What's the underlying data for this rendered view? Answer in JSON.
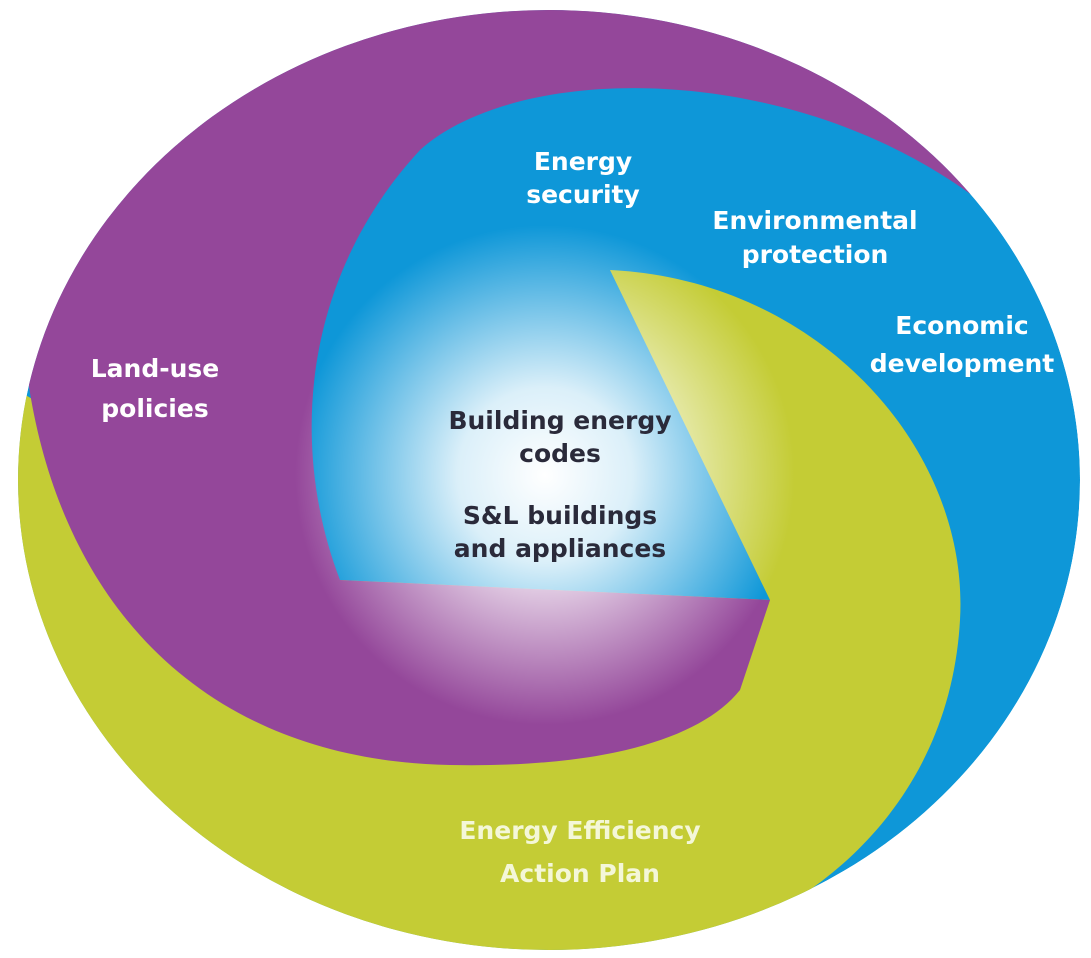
{
  "nodes": [
    {
      "lines": [
        "Energy",
        "security"
      ]
    },
    {
      "lines": [
        "Environmental",
        "protection"
      ]
    },
    {
      "lines": [
        "Economic",
        "development"
      ]
    },
    {
      "lines": [
        "Land-use",
        "policies"
      ]
    },
    {
      "lines": [
        "Building energy",
        "codes"
      ]
    },
    {
      "lines": [
        "S&L buildings",
        "and appliances"
      ]
    },
    {
      "lines": [
        "Energy Efficiency",
        "Action Plan"
      ]
    }
  ]
}
